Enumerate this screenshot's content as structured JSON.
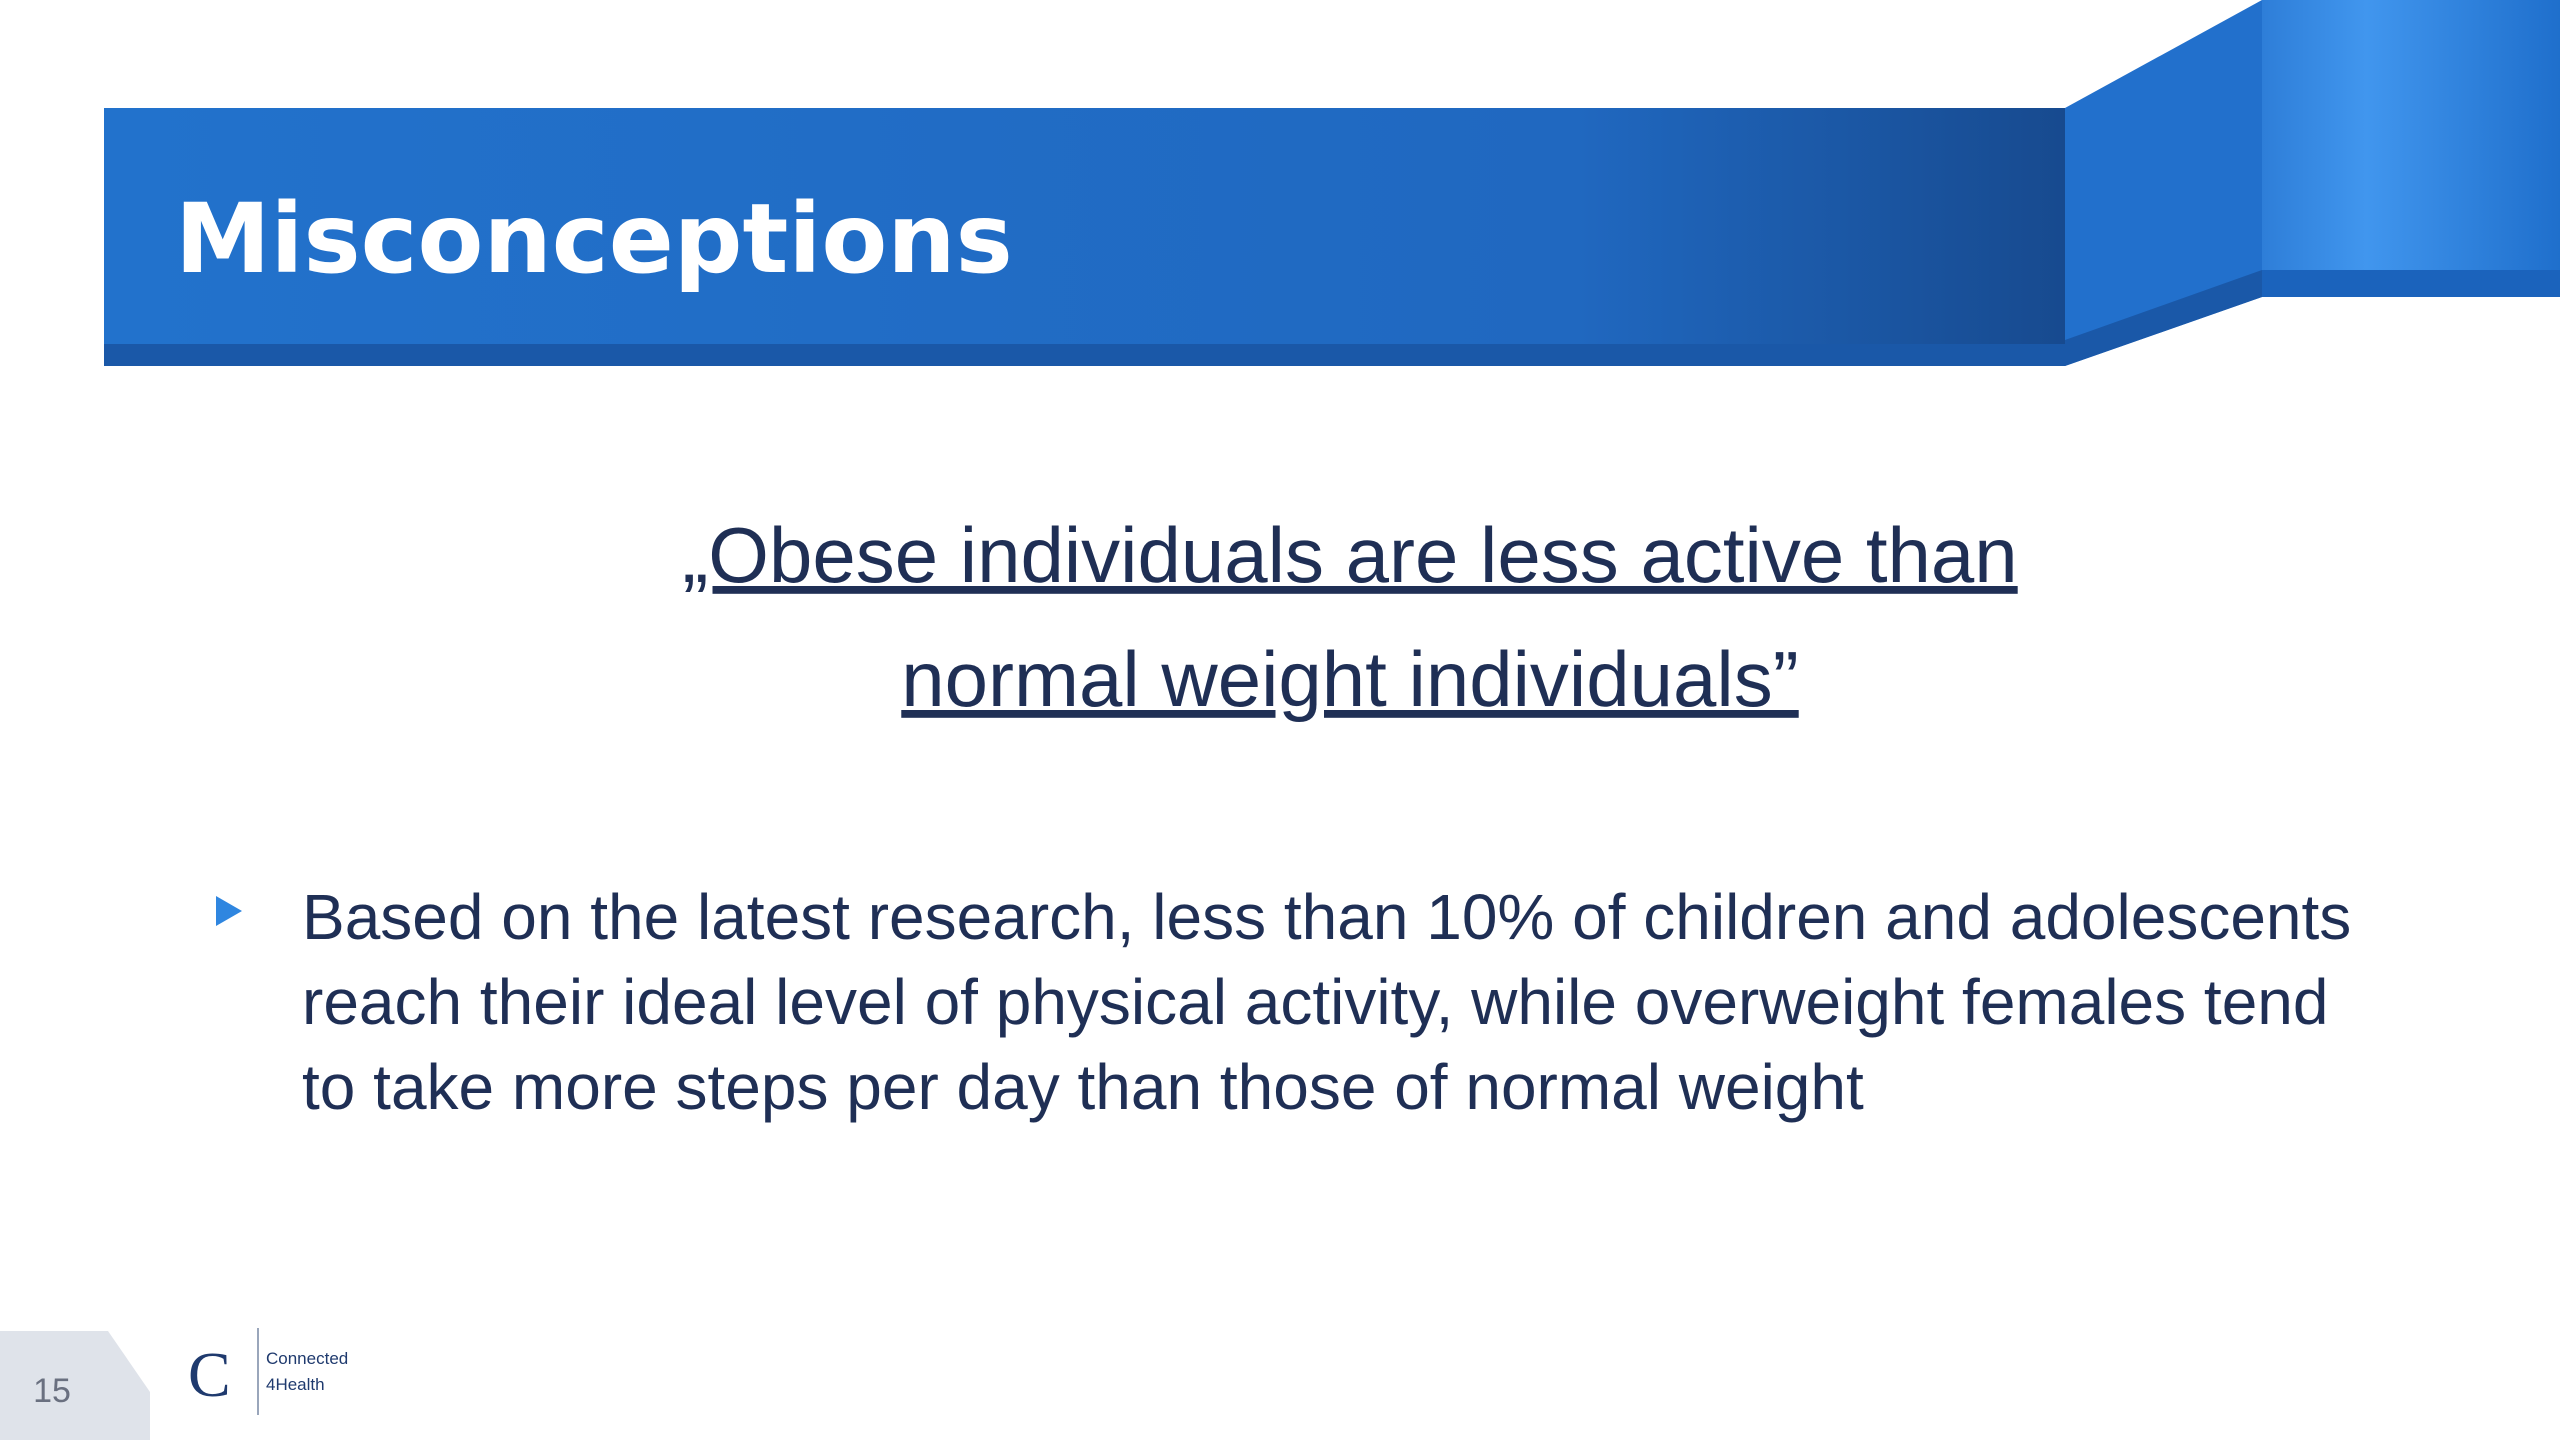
{
  "header": {
    "title": "Misconceptions"
  },
  "quote": {
    "lines": [
      "„Obese individuals are less active than",
      "normal weight individuals”"
    ]
  },
  "bullet": {
    "lines": [
      "Based on the latest research, less than 10% of children and adolescents",
      "reach their ideal level of physical activity, while overweight females tend",
      "to take more steps per day than those of normal weight"
    ]
  },
  "footer": {
    "page_number": "15",
    "logo": {
      "mark": "C",
      "lines": [
        "Connected",
        "4Health"
      ]
    }
  }
}
